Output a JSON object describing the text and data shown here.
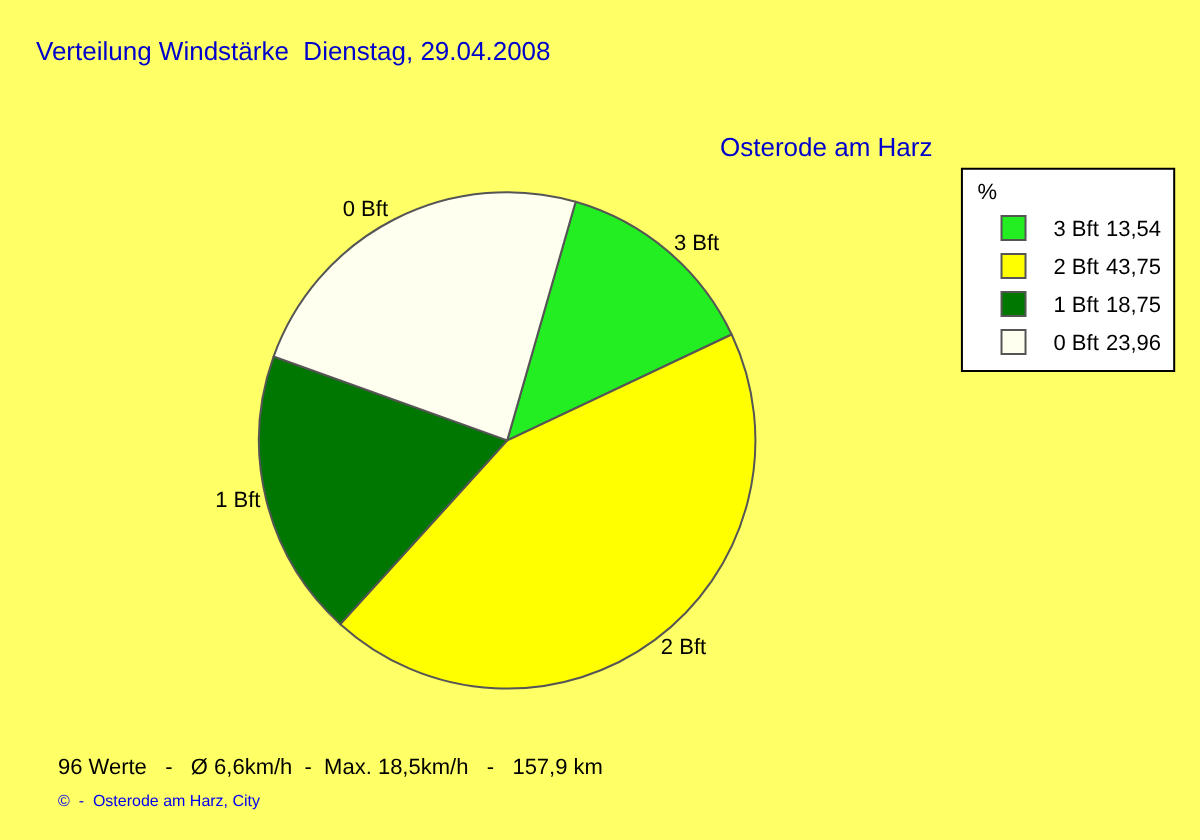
{
  "chart_data": {
    "type": "pie",
    "title": "Verteilung Windstärke  Dienstag, 29.04.2008",
    "subtitle": "Osterode am Harz",
    "legend_title": "%",
    "categories": [
      "3 Bft",
      "2 Bft",
      "1 Bft",
      "0 Bft"
    ],
    "values": [
      13.54,
      43.75,
      18.75,
      23.96
    ],
    "value_labels": [
      "13,54",
      "43,75",
      "18,75",
      "23,96"
    ],
    "colors": [
      "#22ee22",
      "#ffff00",
      "#007700",
      "#fffff0"
    ],
    "legend": "top right",
    "annotations": [
      "96 Werte   -   Ø 6,6km/h  -  Max. 18,5km/h   -   157,9 km",
      "©  -  Osterode am Harz, City"
    ]
  }
}
